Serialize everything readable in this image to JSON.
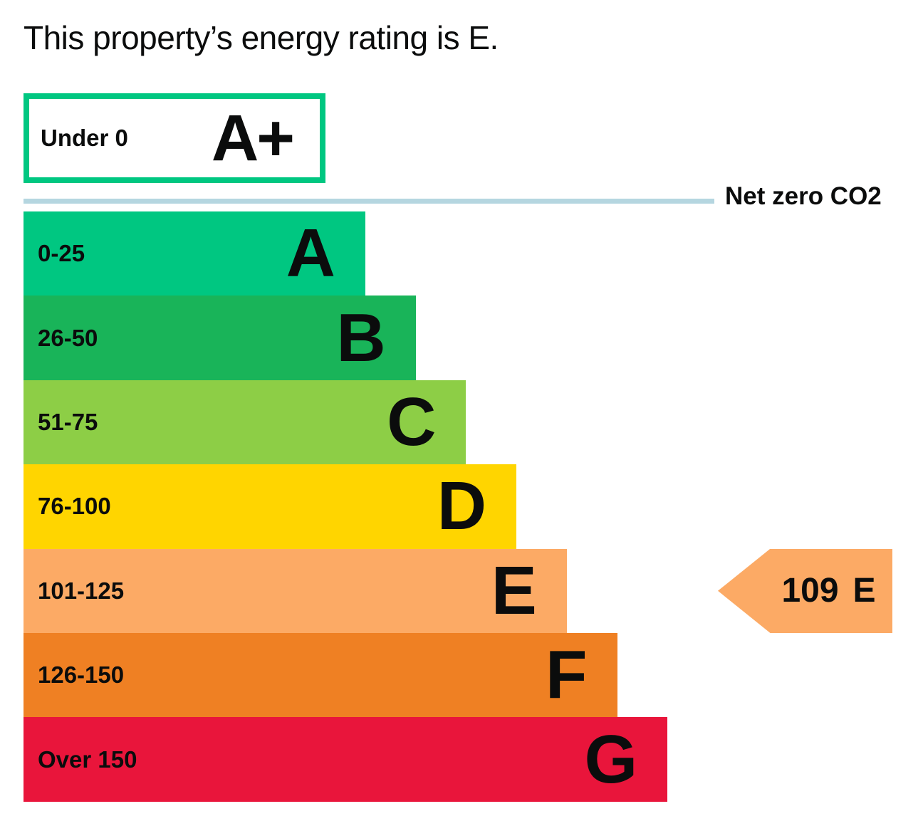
{
  "chart_data": {
    "type": "bar",
    "title": "This property’s energy rating is E.",
    "orientation": "horizontal",
    "current_rating": {
      "value": "109",
      "band": "E"
    },
    "top_band": {
      "range": "Under 0",
      "letter": "A+",
      "border_color": "#00c781",
      "fill_color": "#ffffff"
    },
    "net_zero": {
      "label": "Net zero CO2",
      "line_color": "#b5d6e0"
    },
    "bands": [
      {
        "range": "0-25",
        "letter": "A",
        "color": "#00c781"
      },
      {
        "range": "26-50",
        "letter": "B",
        "color": "#19b459"
      },
      {
        "range": "51-75",
        "letter": "C",
        "color": "#8dce46"
      },
      {
        "range": "76-100",
        "letter": "D",
        "color": "#ffd500"
      },
      {
        "range": "101-125",
        "letter": "E",
        "color": "#fcaa65"
      },
      {
        "range": "126-150",
        "letter": "F",
        "color": "#ef8023"
      },
      {
        "range": "Over 150",
        "letter": "G",
        "color": "#e9153b"
      }
    ],
    "marker": {
      "value": "109",
      "letter": "E",
      "color": "#fcaa65",
      "aligned_band_index": 4
    },
    "text_color": "#0b0c0c",
    "layout_hints": {
      "bar_order": "A-to-G, widths increase downward",
      "marker_position": "right of band E",
      "legend": "none",
      "grid": "off"
    }
  }
}
